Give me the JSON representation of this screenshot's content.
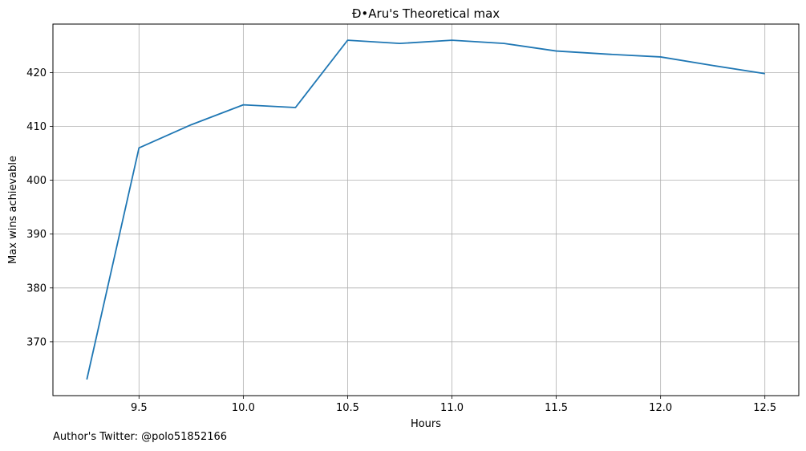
{
  "chart_data": {
    "type": "line",
    "title": "Đ•Aru's Theoretical max",
    "xlabel": "Hours",
    "ylabel": "Max wins achievable",
    "x": [
      9.25,
      9.5,
      9.75,
      10.0,
      10.25,
      10.5,
      10.75,
      11.0,
      11.25,
      11.5,
      11.75,
      12.0,
      12.25,
      12.5
    ],
    "series": [
      {
        "values": [
          363,
          406,
          410.3,
          414,
          413.5,
          426,
          425.4,
          426,
          425.4,
          424,
          423.4,
          422.9,
          421.3,
          419.8
        ]
      }
    ],
    "xlim": [
      9.0875,
      12.6625
    ],
    "ylim": [
      360,
      429
    ],
    "xticks": [
      "9.5",
      "10.0",
      "10.5",
      "11.0",
      "11.5",
      "12.0",
      "12.5"
    ],
    "yticks": [
      "370",
      "380",
      "390",
      "400",
      "410",
      "420"
    ],
    "grid": true,
    "line_color": "#1f77b4"
  },
  "footer": {
    "text": "Author's Twitter: @polo51852166"
  }
}
